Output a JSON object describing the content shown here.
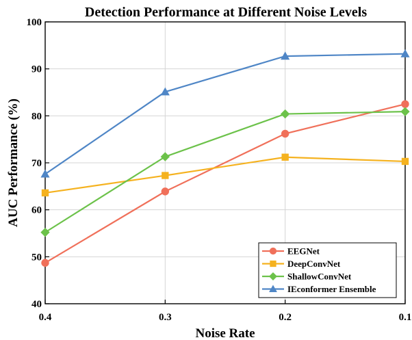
{
  "chart_data": {
    "type": "line",
    "title": "Detection Performance at Different Noise Levels",
    "xlabel": "Noise Rate",
    "ylabel": "AUC Performance (%)",
    "x": [
      "0.4",
      "0.3",
      "0.2",
      "0.1"
    ],
    "ylim": [
      40,
      100
    ],
    "yticks": [
      "40",
      "50",
      "60",
      "70",
      "80",
      "90",
      "100"
    ],
    "grid": true,
    "legend_position": "bottom-right",
    "series": [
      {
        "name": "EEGNet",
        "color": "#f0705a",
        "marker": "circle",
        "values": [
          48.7,
          63.9,
          76.2,
          82.5
        ]
      },
      {
        "name": "DeepConvNet",
        "color": "#f5b21f",
        "marker": "square",
        "values": [
          63.6,
          67.3,
          71.2,
          70.3
        ]
      },
      {
        "name": "ShallowConvNet",
        "color": "#6cc24a",
        "marker": "diamond",
        "values": [
          55.2,
          71.3,
          80.4,
          80.9
        ]
      },
      {
        "name": "IEconformer Ensemble",
        "color": "#4f86c6",
        "marker": "triangle",
        "values": [
          67.6,
          85.1,
          92.7,
          93.2
        ]
      }
    ]
  }
}
